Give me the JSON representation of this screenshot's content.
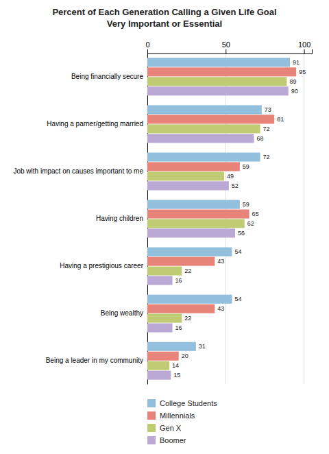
{
  "chart_data": {
    "type": "bar",
    "orientation": "horizontal",
    "title": "Percent of Each Generation Calling a Given Life Goal\nVery Important or Essential",
    "categories": [
      "Being financially secure",
      "Having a parner/getting married",
      "Job with impact on causes important to me",
      "Having children",
      "Having a prestigious career",
      "Being wealthy",
      "Being a leader in my community"
    ],
    "series": [
      {
        "name": "College Students",
        "color": "#92BFDC",
        "values": [
          91,
          73,
          72,
          59,
          54,
          54,
          31
        ]
      },
      {
        "name": "Millennials",
        "color": "#E8837A",
        "values": [
          95,
          81,
          59,
          65,
          43,
          43,
          20
        ]
      },
      {
        "name": "Gen X",
        "color": "#BFCC74",
        "values": [
          89,
          72,
          49,
          62,
          22,
          22,
          14
        ]
      },
      {
        "name": "Boomer",
        "color": "#B9A9D4",
        "values": [
          90,
          68,
          52,
          56,
          16,
          16,
          15
        ]
      }
    ],
    "xlim": [
      0,
      105
    ],
    "xticks": [
      0,
      50,
      100
    ],
    "grid": true,
    "data_labels": true,
    "legend": "bottom"
  }
}
